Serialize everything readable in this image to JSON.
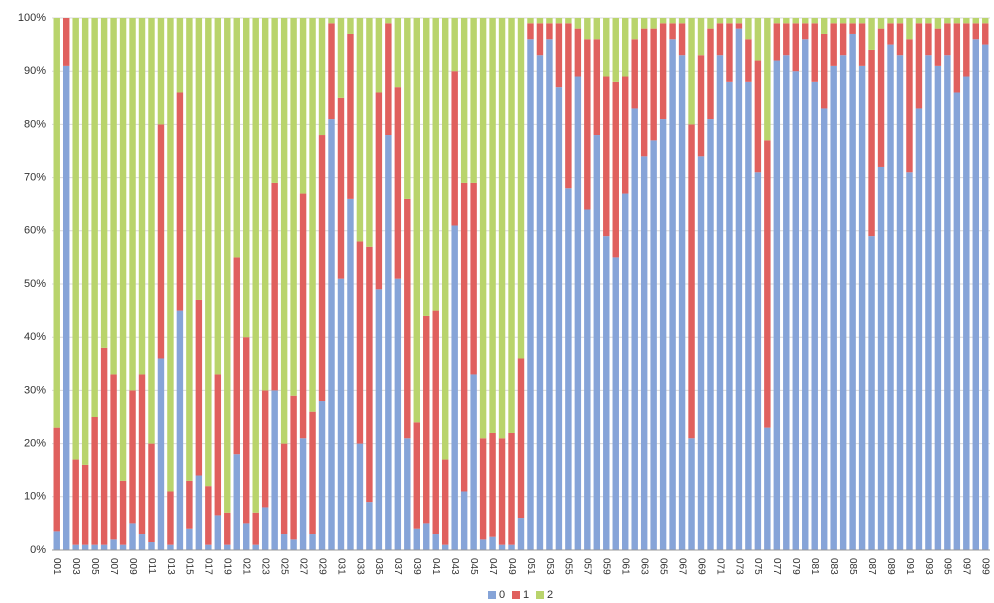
{
  "chart_data": {
    "type": "stacked_bar_100",
    "categories": [
      "001",
      null,
      "003",
      null,
      "005",
      null,
      "007",
      null,
      "009",
      null,
      "011",
      null,
      "013",
      null,
      "015",
      null,
      "017",
      null,
      "019",
      null,
      "021",
      null,
      "023",
      null,
      "025",
      null,
      "027",
      null,
      "029",
      null,
      "031",
      null,
      "033",
      null,
      "035",
      null,
      "037",
      null,
      "039",
      null,
      "041",
      null,
      "043",
      null,
      "045",
      null,
      "047",
      null,
      "049",
      null,
      "051",
      null,
      "053",
      null,
      "055",
      null,
      "057",
      null,
      "059",
      null,
      "061",
      null,
      "063",
      null,
      "065",
      null,
      "067",
      null,
      "069",
      null,
      "071",
      null,
      "073",
      null,
      "075",
      null,
      "077",
      null,
      "079",
      null,
      "081",
      null,
      "083",
      null,
      "085",
      null,
      "087",
      null,
      "089",
      null,
      "091",
      null,
      "093",
      null,
      "095",
      null,
      "097",
      null,
      "099"
    ],
    "series": [
      {
        "name": "0",
        "color": "#86a4d8",
        "values": [
          3.5,
          91,
          1,
          1,
          1,
          1,
          2,
          1,
          5,
          3,
          1.5,
          36,
          1,
          45,
          4,
          14,
          1,
          6.5,
          1,
          18,
          5,
          1,
          8,
          30,
          3,
          2,
          21,
          3,
          28,
          81,
          51,
          66,
          20,
          9,
          49,
          78,
          51,
          21,
          4,
          5,
          3,
          1,
          61,
          11,
          33,
          2,
          2.5,
          1,
          1,
          6,
          96,
          93,
          96,
          87,
          68,
          89,
          64,
          78,
          59,
          55,
          67,
          83,
          74,
          77,
          81,
          96,
          93,
          21,
          74,
          81,
          93,
          88,
          98,
          88,
          71,
          23,
          92,
          93,
          90,
          96,
          88,
          83,
          91,
          93,
          97,
          91,
          59,
          72,
          95,
          93,
          71,
          83,
          93,
          91,
          93,
          86,
          89,
          96,
          95
        ]
      },
      {
        "name": "1",
        "color": "#e0605e",
        "values": [
          19.5,
          9,
          16,
          15,
          24,
          37,
          31,
          12,
          25,
          30,
          18.5,
          44,
          10,
          41,
          9,
          33,
          11,
          26.5,
          6,
          37,
          35,
          6,
          22,
          39,
          17,
          27,
          46,
          23,
          50,
          18,
          34,
          31,
          38,
          48,
          37,
          21,
          36,
          45,
          20,
          39,
          42,
          16,
          29,
          58,
          36,
          19,
          19.5,
          20,
          21,
          30,
          3,
          6,
          3,
          12,
          31,
          9,
          32,
          18,
          30,
          33,
          22,
          13,
          24,
          21,
          18,
          3,
          6,
          59,
          19,
          17,
          6,
          11,
          1,
          8,
          21,
          54,
          7,
          6,
          9,
          3,
          11,
          14,
          8,
          6,
          2,
          8,
          35,
          26,
          4,
          6,
          25,
          16,
          6,
          7,
          6,
          13,
          10,
          3,
          4
        ]
      },
      {
        "name": "2",
        "color": "#b9d46c",
        "values": [
          77,
          0,
          83,
          84,
          75,
          62,
          67,
          87,
          70,
          67,
          80,
          20,
          89,
          14,
          87,
          53,
          88,
          67,
          93,
          45,
          60,
          93,
          70,
          31,
          80,
          71,
          33,
          74,
          22,
          1,
          15,
          3,
          42,
          43,
          14,
          1,
          13,
          34,
          76,
          56,
          55,
          83,
          10,
          31,
          31,
          79,
          78,
          79,
          78,
          64,
          1,
          1,
          1,
          1,
          1,
          2,
          4,
          4,
          11,
          12,
          11,
          4,
          2,
          2,
          1,
          1,
          1,
          20,
          7,
          2,
          1,
          1,
          1,
          4,
          8,
          23,
          1,
          1,
          1,
          1,
          1,
          3,
          1,
          1,
          1,
          1,
          6,
          2,
          1,
          1,
          4,
          1,
          1,
          2,
          1,
          1,
          1,
          1,
          1
        ]
      }
    ],
    "ylim": [
      0,
      100
    ],
    "yticks": [
      {
        "value": 0,
        "label": "0%"
      },
      {
        "value": 10,
        "label": "10%"
      },
      {
        "value": 20,
        "label": "20%"
      },
      {
        "value": 30,
        "label": "30%"
      },
      {
        "value": 40,
        "label": "40%"
      },
      {
        "value": 50,
        "label": "50%"
      },
      {
        "value": 60,
        "label": "60%"
      },
      {
        "value": 70,
        "label": "70%"
      },
      {
        "value": 80,
        "label": "80%"
      },
      {
        "value": 90,
        "label": "90%"
      },
      {
        "value": 100,
        "label": "100%"
      }
    ],
    "grid": true,
    "legend": "bottom"
  }
}
